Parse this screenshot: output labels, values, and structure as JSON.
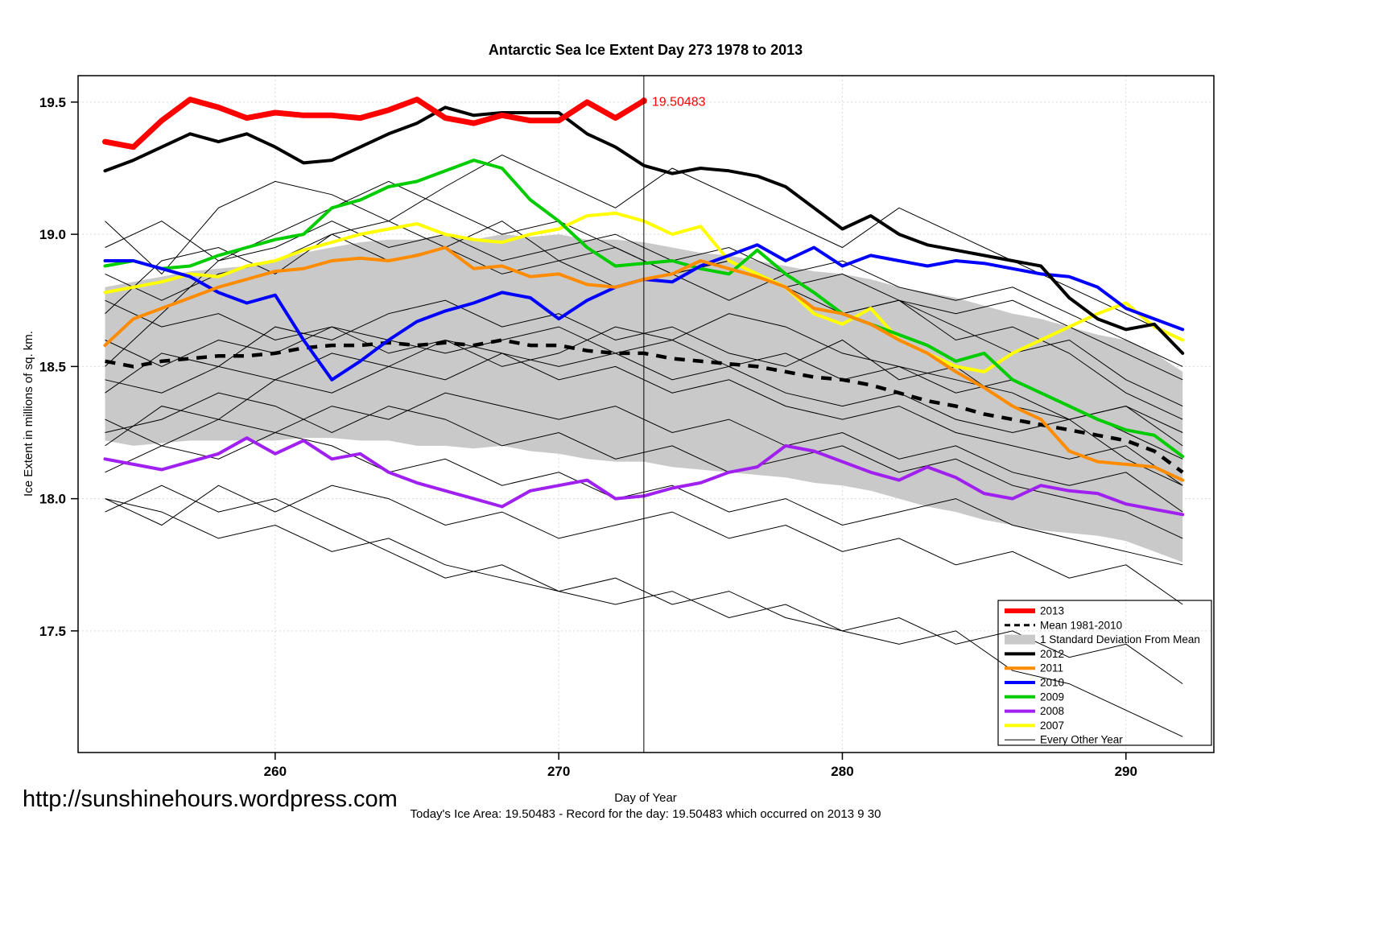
{
  "annotation": "19.50483",
  "footer": {
    "url": "http://sunshinehours.wordpress.com",
    "note": "Today's Ice Area: 19.50483  - Record for the day: 19.50483 which occurred on 2013 9 30"
  },
  "chart_data": {
    "type": "line",
    "title": "Antarctic Sea Ice Extent Day 273 1978 to 2013",
    "xlabel": "Day of Year",
    "ylabel": "Ice Extent in millions of sq. km.",
    "xlim": [
      253.05,
      293.1
    ],
    "ylim": [
      17.04,
      19.6
    ],
    "grid": true,
    "marker_x": 273,
    "x_ticks": [
      {
        "value": 260,
        "label": "260"
      },
      {
        "value": 270,
        "label": "270"
      },
      {
        "value": 280,
        "label": "280"
      },
      {
        "value": 290,
        "label": "290"
      }
    ],
    "y_ticks": [
      {
        "value": 17.5,
        "label": "17.5"
      },
      {
        "value": 18.0,
        "label": "18.0"
      },
      {
        "value": 18.5,
        "label": "18.5"
      },
      {
        "value": 19.0,
        "label": "19.0"
      },
      {
        "value": 19.5,
        "label": "19.5"
      }
    ],
    "x": [
      254,
      255,
      256,
      257,
      258,
      259,
      260,
      261,
      262,
      263,
      264,
      265,
      266,
      267,
      268,
      269,
      270,
      271,
      272,
      273,
      274,
      275,
      276,
      277,
      278,
      279,
      280,
      281,
      282,
      283,
      284,
      285,
      286,
      287,
      288,
      289,
      290,
      291,
      292
    ],
    "band": {
      "name": "1 Standard Deviation From Mean",
      "color": "#c9c9c9",
      "upper": [
        18.8,
        18.82,
        18.84,
        18.86,
        18.87,
        18.88,
        18.9,
        18.93,
        18.95,
        18.97,
        18.98,
        18.98,
        19.0,
        18.98,
        19.0,
        18.99,
        19.0,
        18.98,
        18.98,
        18.97,
        18.95,
        18.93,
        18.92,
        18.9,
        18.88,
        18.86,
        18.85,
        18.83,
        18.8,
        18.78,
        18.76,
        18.73,
        18.7,
        18.68,
        18.65,
        18.62,
        18.6,
        18.55,
        18.48
      ],
      "lower": [
        18.22,
        18.2,
        18.21,
        18.22,
        18.22,
        18.22,
        18.22,
        18.23,
        18.23,
        18.22,
        18.22,
        18.2,
        18.2,
        18.19,
        18.2,
        18.18,
        18.17,
        18.15,
        18.14,
        18.14,
        18.12,
        18.11,
        18.1,
        18.09,
        18.08,
        18.06,
        18.05,
        18.03,
        18.0,
        17.97,
        17.95,
        17.92,
        17.9,
        17.88,
        17.87,
        17.86,
        17.84,
        17.8,
        17.76
      ]
    },
    "mean": {
      "name": "Mean 1981-2010",
      "color": "#000000",
      "width": 4.5,
      "dash": "13 10",
      "values": [
        18.52,
        18.5,
        18.52,
        18.53,
        18.54,
        18.54,
        18.55,
        18.57,
        18.58,
        18.58,
        18.59,
        18.58,
        18.59,
        18.58,
        18.6,
        18.58,
        18.58,
        18.56,
        18.55,
        18.55,
        18.53,
        18.52,
        18.51,
        18.5,
        18.48,
        18.46,
        18.45,
        18.43,
        18.4,
        18.37,
        18.35,
        18.32,
        18.3,
        18.28,
        18.26,
        18.24,
        18.22,
        18.18,
        18.1
      ]
    },
    "series": [
      {
        "name": "2013",
        "color": "#ff0000",
        "width": 7,
        "values": [
          19.35,
          19.33,
          19.43,
          19.51,
          19.48,
          19.44,
          19.46,
          19.45,
          19.45,
          19.44,
          19.47,
          19.51,
          19.44,
          19.42,
          19.45,
          19.43,
          19.43,
          19.5,
          19.44,
          19.50483
        ],
        "end_label": "19.50483"
      },
      {
        "name": "2012",
        "color": "#000000",
        "width": 4,
        "values": [
          19.24,
          19.28,
          19.33,
          19.38,
          19.35,
          19.38,
          19.33,
          19.27,
          19.28,
          19.33,
          19.38,
          19.42,
          19.48,
          19.45,
          19.46,
          19.46,
          19.46,
          19.38,
          19.33,
          19.26,
          19.23,
          19.25,
          19.24,
          19.22,
          19.18,
          19.1,
          19.02,
          19.07,
          19.0,
          18.96,
          18.94,
          18.92,
          18.9,
          18.88,
          18.76,
          18.68,
          18.64,
          18.66,
          18.55
        ]
      },
      {
        "name": "2011",
        "color": "#ff8c00",
        "width": 4,
        "values": [
          18.58,
          18.68,
          18.72,
          18.76,
          18.8,
          18.83,
          18.86,
          18.87,
          18.9,
          18.91,
          18.9,
          18.92,
          18.95,
          18.87,
          18.88,
          18.84,
          18.85,
          18.81,
          18.8,
          18.83,
          18.85,
          18.9,
          18.87,
          18.84,
          18.8,
          18.72,
          18.7,
          18.66,
          18.6,
          18.55,
          18.48,
          18.42,
          18.35,
          18.3,
          18.18,
          18.14,
          18.13,
          18.12,
          18.07
        ]
      },
      {
        "name": "2010",
        "color": "#0000ff",
        "width": 4,
        "values": [
          18.9,
          18.9,
          18.87,
          18.84,
          18.78,
          18.74,
          18.77,
          18.6,
          18.45,
          18.52,
          18.6,
          18.67,
          18.71,
          18.74,
          18.78,
          18.76,
          18.68,
          18.75,
          18.8,
          18.83,
          18.82,
          18.88,
          18.92,
          18.96,
          18.9,
          18.95,
          18.88,
          18.92,
          18.9,
          18.88,
          18.9,
          18.89,
          18.87,
          18.85,
          18.84,
          18.8,
          18.72,
          18.68,
          18.64
        ]
      },
      {
        "name": "2009",
        "color": "#00cc00",
        "width": 4,
        "values": [
          18.88,
          18.9,
          18.87,
          18.88,
          18.92,
          18.95,
          18.98,
          19.0,
          19.1,
          19.13,
          19.18,
          19.2,
          19.24,
          19.28,
          19.25,
          19.13,
          19.05,
          18.95,
          18.88,
          18.89,
          18.9,
          18.87,
          18.85,
          18.94,
          18.85,
          18.78,
          18.7,
          18.66,
          18.62,
          18.58,
          18.52,
          18.55,
          18.45,
          18.4,
          18.35,
          18.3,
          18.26,
          18.24,
          18.16
        ]
      },
      {
        "name": "2008",
        "color": "#a020f0",
        "width": 4,
        "values": [
          18.15,
          18.13,
          18.11,
          18.14,
          18.17,
          18.23,
          18.17,
          18.22,
          18.15,
          18.17,
          18.1,
          18.06,
          18.03,
          18.0,
          17.97,
          18.03,
          18.05,
          18.07,
          18.0,
          18.01,
          18.04,
          18.06,
          18.1,
          18.12,
          18.2,
          18.18,
          18.14,
          18.1,
          18.07,
          18.12,
          18.08,
          18.02,
          18.0,
          18.05,
          18.03,
          18.02,
          17.98,
          17.96,
          17.94
        ]
      },
      {
        "name": "2007",
        "color": "#ffff00",
        "width": 4,
        "values": [
          18.78,
          18.8,
          18.82,
          18.85,
          18.84,
          18.88,
          18.9,
          18.94,
          18.97,
          19.0,
          19.02,
          19.04,
          19.0,
          18.98,
          18.97,
          19.0,
          19.02,
          19.07,
          19.08,
          19.05,
          19.0,
          19.03,
          18.9,
          18.85,
          18.8,
          18.7,
          18.66,
          18.72,
          18.6,
          18.55,
          18.5,
          18.48,
          18.55,
          18.6,
          18.65,
          18.7,
          18.74,
          18.65,
          18.6
        ]
      }
    ],
    "background_series": {
      "name": "Every Other Year",
      "color": "#000000",
      "width": 1,
      "x_start": 254,
      "x_step": 2,
      "lines": [
        [
          19.05,
          18.85,
          19.1,
          19.2,
          19.15,
          19.05,
          19.18,
          19.3,
          19.2,
          19.1,
          19.25,
          19.15,
          19.05,
          18.95,
          19.1,
          19.0,
          18.9,
          18.8,
          18.7,
          18.6
        ],
        [
          18.7,
          18.9,
          18.95,
          18.85,
          19.0,
          19.05,
          18.95,
          19.05,
          18.9,
          18.95,
          18.85,
          18.75,
          18.85,
          18.7,
          18.75,
          18.6,
          18.65,
          18.55,
          18.4,
          18.3
        ],
        [
          18.4,
          18.55,
          18.5,
          18.65,
          18.6,
          18.7,
          18.75,
          18.65,
          18.7,
          18.6,
          18.65,
          18.55,
          18.5,
          18.6,
          18.45,
          18.5,
          18.35,
          18.3,
          18.35,
          18.2
        ],
        [
          18.2,
          18.35,
          18.3,
          18.45,
          18.4,
          18.5,
          18.45,
          18.55,
          18.5,
          18.55,
          18.45,
          18.5,
          18.4,
          18.35,
          18.4,
          18.3,
          18.25,
          18.3,
          18.15,
          18.05
        ],
        [
          18.0,
          17.9,
          18.05,
          17.95,
          18.05,
          18.0,
          17.9,
          17.95,
          17.85,
          17.9,
          17.95,
          17.85,
          17.9,
          17.8,
          17.85,
          17.75,
          17.8,
          17.7,
          17.75,
          17.6
        ],
        [
          17.95,
          18.05,
          17.95,
          18.0,
          17.9,
          17.8,
          17.7,
          17.75,
          17.65,
          17.6,
          17.65,
          17.55,
          17.6,
          17.5,
          17.45,
          17.5,
          17.35,
          17.3,
          17.2,
          17.1
        ],
        [
          18.85,
          18.75,
          18.85,
          18.9,
          19.0,
          18.9,
          18.95,
          18.85,
          18.9,
          18.8,
          18.85,
          18.9,
          18.8,
          18.7,
          18.75,
          18.65,
          18.55,
          18.6,
          18.45,
          18.35
        ],
        [
          18.3,
          18.2,
          18.3,
          18.25,
          18.35,
          18.3,
          18.4,
          18.35,
          18.3,
          18.35,
          18.25,
          18.3,
          18.2,
          18.25,
          18.15,
          18.2,
          18.1,
          18.05,
          18.1,
          17.95
        ],
        [
          18.6,
          18.5,
          18.6,
          18.55,
          18.65,
          18.6,
          18.55,
          18.6,
          18.65,
          18.55,
          18.6,
          18.5,
          18.55,
          18.45,
          18.5,
          18.4,
          18.45,
          18.35,
          18.25,
          18.15
        ],
        [
          18.1,
          18.2,
          18.15,
          18.25,
          18.2,
          18.1,
          18.15,
          18.05,
          18.1,
          18.0,
          18.05,
          17.95,
          18.0,
          17.9,
          17.95,
          18.0,
          17.9,
          17.85,
          17.8,
          17.75
        ],
        [
          18.5,
          18.7,
          18.9,
          19.0,
          19.1,
          19.2,
          19.1,
          19.0,
          19.05,
          18.95,
          18.85,
          18.9,
          18.8,
          18.85,
          18.75,
          18.7,
          18.75,
          18.65,
          18.55,
          18.45
        ],
        [
          18.45,
          18.4,
          18.5,
          18.45,
          18.55,
          18.5,
          18.6,
          18.55,
          18.45,
          18.5,
          18.4,
          18.45,
          18.35,
          18.3,
          18.35,
          18.25,
          18.2,
          18.15,
          18.2,
          18.05
        ],
        [
          18.75,
          18.65,
          18.7,
          18.6,
          18.65,
          18.55,
          18.6,
          18.5,
          18.55,
          18.65,
          18.6,
          18.7,
          18.65,
          18.55,
          18.5,
          18.45,
          18.4,
          18.3,
          18.35,
          18.25
        ],
        [
          18.0,
          17.95,
          17.85,
          17.9,
          17.8,
          17.85,
          17.75,
          17.7,
          17.65,
          17.7,
          17.6,
          17.65,
          17.55,
          17.5,
          17.55,
          17.45,
          17.5,
          17.4,
          17.45,
          17.3
        ],
        [
          18.95,
          19.05,
          18.9,
          18.95,
          19.05,
          18.95,
          19.0,
          18.9,
          18.95,
          19.0,
          18.9,
          18.95,
          18.85,
          18.9,
          18.8,
          18.75,
          18.8,
          18.7,
          18.6,
          18.5
        ],
        [
          18.25,
          18.3,
          18.4,
          18.35,
          18.25,
          18.35,
          18.3,
          18.2,
          18.25,
          18.15,
          18.2,
          18.1,
          18.15,
          18.2,
          18.1,
          18.15,
          18.05,
          18.0,
          17.95,
          17.85
        ]
      ]
    },
    "legend": {
      "position": "bottom-right",
      "items": [
        {
          "label": "2013",
          "swatch": "line",
          "color": "#ff0000",
          "width": 6
        },
        {
          "label": "Mean 1981-2010",
          "swatch": "dashed",
          "color": "#000000",
          "width": 3
        },
        {
          "label": "1 Standard Deviation From Mean",
          "swatch": "band",
          "color": "#c9c9c9",
          "width": 0
        },
        {
          "label": "2012",
          "swatch": "line",
          "color": "#000000",
          "width": 4
        },
        {
          "label": "2011",
          "swatch": "line",
          "color": "#ff8c00",
          "width": 4
        },
        {
          "label": "2010",
          "swatch": "line",
          "color": "#0000ff",
          "width": 4
        },
        {
          "label": "2009",
          "swatch": "line",
          "color": "#00cc00",
          "width": 4
        },
        {
          "label": "2008",
          "swatch": "line",
          "color": "#a020f0",
          "width": 4
        },
        {
          "label": "2007",
          "swatch": "line",
          "color": "#ffff00",
          "width": 4
        },
        {
          "label": "Every Other Year",
          "swatch": "line",
          "color": "#000000",
          "width": 1
        }
      ]
    }
  }
}
